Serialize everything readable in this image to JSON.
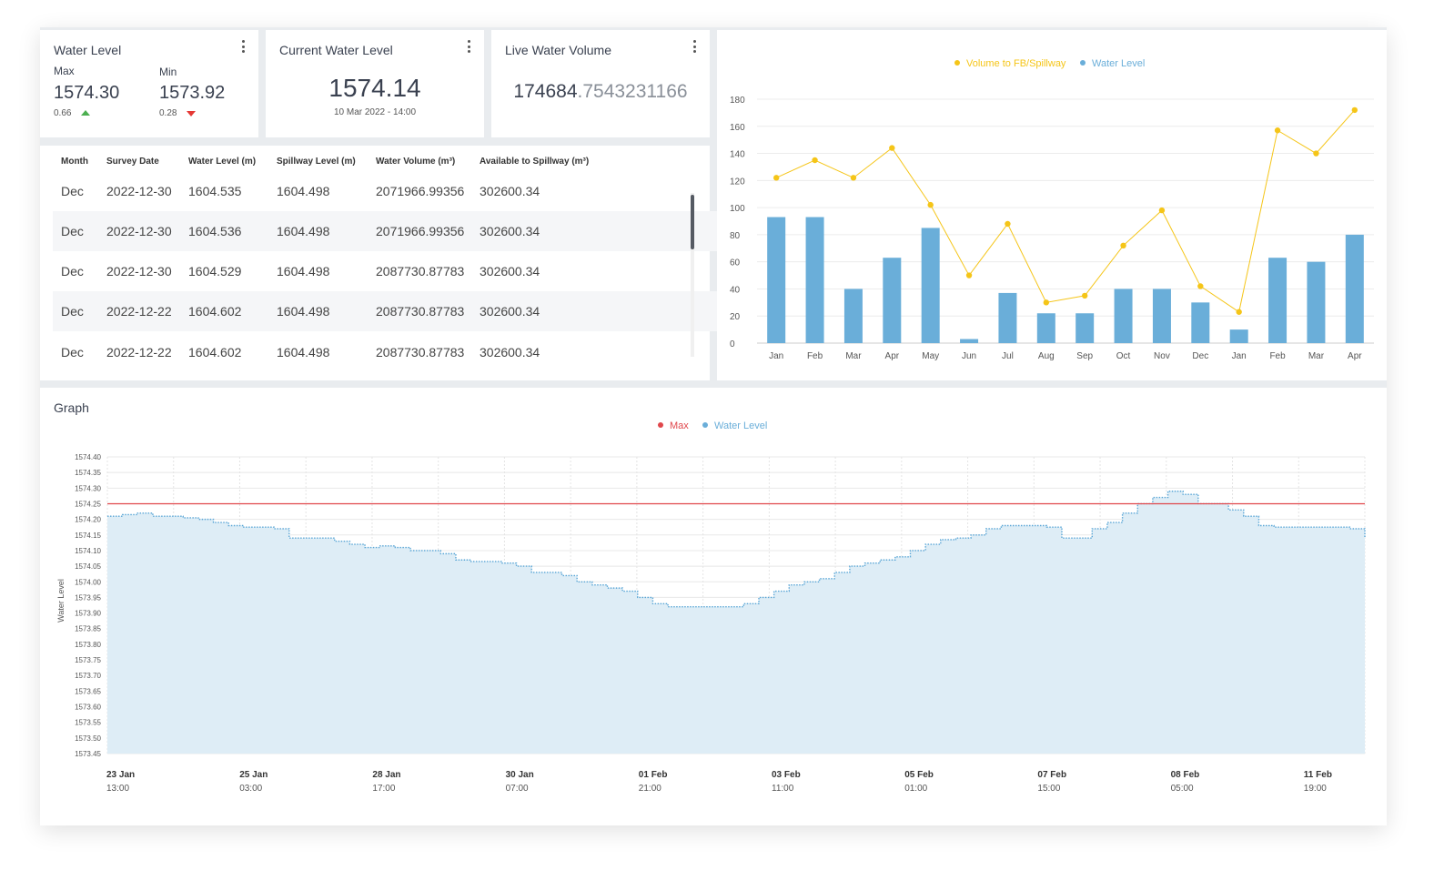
{
  "water_level_card": {
    "title": "Water Level",
    "max_label": "Max",
    "max_value": "1574.30",
    "max_delta": "0.66",
    "min_label": "Min",
    "min_value": "1573.92",
    "min_delta": "0.28"
  },
  "current_card": {
    "title": "Current Water Level",
    "value": "1574.14",
    "timestamp": "10 Mar 2022 - 14:00"
  },
  "volume_card": {
    "title": "Live Water Volume",
    "value_main": "174684",
    "value_decimals": ".7543231166"
  },
  "table": {
    "headers": [
      "Month",
      "Survey Date",
      "Water Level (m)",
      "Spillway Level (m)",
      "Water Volume (m³)",
      "Available to Spillway (m³)"
    ],
    "rows": [
      [
        "Dec",
        "2022-12-30",
        "1604.535",
        "1604.498",
        "2071966.99356",
        "302600.34"
      ],
      [
        "Dec",
        "2022-12-30",
        "1604.536",
        "1604.498",
        "2071966.99356",
        "302600.34"
      ],
      [
        "Dec",
        "2022-12-30",
        "1604.529",
        "1604.498",
        "2087730.87783",
        "302600.34"
      ],
      [
        "Dec",
        "2022-12-22",
        "1604.602",
        "1604.498",
        "2087730.87783",
        "302600.34"
      ],
      [
        "Dec",
        "2022-12-22",
        "1604.602",
        "1604.498",
        "2087730.87783",
        "302600.34"
      ]
    ]
  },
  "colors": {
    "bar": "#6aaed9",
    "line_yellow": "#f5c518",
    "max_red": "#e0474c",
    "area_fill": "#deedf6",
    "area_line": "#5aa6d6"
  },
  "chart_data": [
    {
      "type": "bar",
      "categories": [
        "Jan",
        "Feb",
        "Mar",
        "Apr",
        "May",
        "Jun",
        "Jul",
        "Aug",
        "Sep",
        "Oct",
        "Nov",
        "Dec",
        "Jan",
        "Feb",
        "Mar",
        "Apr"
      ],
      "series": [
        {
          "name": "Water Level",
          "type": "bar",
          "values": [
            93,
            93,
            40,
            63,
            85,
            3,
            37,
            22,
            22,
            40,
            40,
            30,
            10,
            63,
            60,
            80
          ]
        },
        {
          "name": "Volume to FB/Spillway",
          "type": "line",
          "values": [
            122,
            135,
            122,
            144,
            102,
            50,
            88,
            30,
            35,
            72,
            98,
            42,
            23,
            157,
            140,
            172
          ]
        }
      ],
      "ylim": [
        0,
        180
      ],
      "yticks": [
        0,
        20,
        40,
        60,
        80,
        100,
        120,
        140,
        160,
        180
      ],
      "legend": "top-center",
      "grid": true
    },
    {
      "type": "area",
      "title": "Graph",
      "ylabel": "Water Level",
      "ylim": [
        1573.45,
        1574.4
      ],
      "yticks": [
        "1574.40",
        "1574.35",
        "1574.30",
        "1574.25",
        "1574.20",
        "1574.15",
        "1574.10",
        "1574.05",
        "1574.00",
        "1573.95",
        "1573.90",
        "1573.85",
        "1573.80",
        "1573.75",
        "1573.70",
        "1573.65",
        "1573.60",
        "1573.55",
        "1573.50",
        "1573.45"
      ],
      "xticks": [
        {
          "date": "23 Jan",
          "time": "13:00"
        },
        {
          "date": "25 Jan",
          "time": "03:00"
        },
        {
          "date": "28 Jan",
          "time": "17:00"
        },
        {
          "date": "30 Jan",
          "time": "07:00"
        },
        {
          "date": "01 Feb",
          "time": "21:00"
        },
        {
          "date": "03 Feb",
          "time": "11:00"
        },
        {
          "date": "05 Feb",
          "time": "01:00"
        },
        {
          "date": "07 Feb",
          "time": "15:00"
        },
        {
          "date": "08 Feb",
          "time": "05:00"
        },
        {
          "date": "11 Feb",
          "time": "19:00"
        }
      ],
      "max_line": 1574.25,
      "series": [
        {
          "name": "Max",
          "type": "line"
        },
        {
          "name": "Water Level",
          "type": "area",
          "values": [
            1574.21,
            1574.215,
            1574.22,
            1574.21,
            1574.21,
            1574.205,
            1574.2,
            1574.19,
            1574.18,
            1574.175,
            1574.175,
            1574.17,
            1574.14,
            1574.14,
            1574.14,
            1574.13,
            1574.12,
            1574.11,
            1574.115,
            1574.11,
            1574.1,
            1574.1,
            1574.09,
            1574.07,
            1574.065,
            1574.065,
            1574.06,
            1574.05,
            1574.03,
            1574.03,
            1574.02,
            1574.0,
            1573.99,
            1573.98,
            1573.97,
            1573.95,
            1573.93,
            1573.92,
            1573.92,
            1573.92,
            1573.92,
            1573.92,
            1573.93,
            1573.95,
            1573.97,
            1573.99,
            1574.0,
            1574.01,
            1574.03,
            1574.05,
            1574.06,
            1574.07,
            1574.08,
            1574.1,
            1574.12,
            1574.135,
            1574.14,
            1574.15,
            1574.17,
            1574.18,
            1574.18,
            1574.18,
            1574.175,
            1574.14,
            1574.14,
            1574.17,
            1574.19,
            1574.22,
            1574.25,
            1574.27,
            1574.29,
            1574.28,
            1574.25,
            1574.25,
            1574.23,
            1574.21,
            1574.18,
            1574.175,
            1574.175,
            1574.175,
            1574.175,
            1574.175,
            1574.17,
            1574.14
          ]
        }
      ]
    }
  ]
}
